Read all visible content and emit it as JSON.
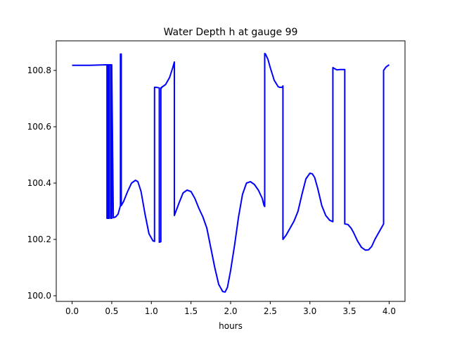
{
  "chart_data": {
    "type": "line",
    "title": "Water Depth h at gauge 99",
    "xlabel": "hours",
    "ylabel": "",
    "xlim": [
      -0.2,
      4.2
    ],
    "ylim": [
      99.98,
      100.905
    ],
    "xticks": [
      0.0,
      0.5,
      1.0,
      1.5,
      2.0,
      2.5,
      3.0,
      3.5,
      4.0
    ],
    "xtick_labels": [
      "0.0",
      "0.5",
      "1.0",
      "1.5",
      "2.0",
      "2.5",
      "3.0",
      "3.5",
      "4.0"
    ],
    "yticks": [
      100.0,
      100.2,
      100.4,
      100.6,
      100.8
    ],
    "ytick_labels": [
      "100.0",
      "100.2",
      "100.4",
      "100.6",
      "100.8"
    ],
    "grid": false,
    "legend": "none",
    "series": [
      {
        "color": "#0000ff",
        "x": [
          0.0,
          0.2,
          0.44,
          0.44,
          0.45,
          0.45,
          0.46,
          0.46,
          0.47,
          0.47,
          0.49,
          0.49,
          0.5,
          0.5,
          0.52,
          0.55,
          0.58,
          0.6,
          0.61,
          0.61,
          0.62,
          0.62,
          0.65,
          0.7,
          0.75,
          0.8,
          0.83,
          0.87,
          0.92,
          0.97,
          1.02,
          1.04,
          1.04,
          1.06,
          1.1,
          1.1,
          1.12,
          1.12,
          1.13,
          1.13,
          1.18,
          1.23,
          1.27,
          1.29,
          1.29,
          1.35,
          1.4,
          1.45,
          1.5,
          1.55,
          1.6,
          1.65,
          1.7,
          1.75,
          1.8,
          1.85,
          1.9,
          1.93,
          1.96,
          2.0,
          2.05,
          2.1,
          2.15,
          2.2,
          2.25,
          2.3,
          2.35,
          2.4,
          2.42,
          2.43,
          2.43,
          2.44,
          2.47,
          2.5,
          2.55,
          2.6,
          2.62,
          2.65,
          2.66,
          2.66,
          2.7,
          2.75,
          2.8,
          2.85,
          2.9,
          2.95,
          3.0,
          3.03,
          3.06,
          3.1,
          3.15,
          3.2,
          3.25,
          3.29,
          3.29,
          3.32,
          3.34,
          3.38,
          3.44,
          3.44,
          3.48,
          3.52,
          3.55,
          3.6,
          3.65,
          3.7,
          3.74,
          3.78,
          3.82,
          3.87,
          3.92,
          3.93,
          3.93,
          3.96,
          4.0
        ],
        "y": [
          100.818,
          100.818,
          100.82,
          100.275,
          100.275,
          100.82,
          100.82,
          100.275,
          100.275,
          100.82,
          100.82,
          100.275,
          100.275,
          100.82,
          100.277,
          100.28,
          100.29,
          100.31,
          100.32,
          100.858,
          100.858,
          100.32,
          100.335,
          100.37,
          100.4,
          100.41,
          100.405,
          100.37,
          100.29,
          100.22,
          100.195,
          100.193,
          100.74,
          100.74,
          100.738,
          100.19,
          100.192,
          100.738,
          100.738,
          100.74,
          100.75,
          100.775,
          100.81,
          100.83,
          100.285,
          100.33,
          100.365,
          100.375,
          100.37,
          100.345,
          100.31,
          100.28,
          100.24,
          100.17,
          100.1,
          100.04,
          100.015,
          100.013,
          100.03,
          100.09,
          100.18,
          100.28,
          100.36,
          100.4,
          100.405,
          100.395,
          100.375,
          100.345,
          100.322,
          100.317,
          100.86,
          100.858,
          100.84,
          100.81,
          100.765,
          100.742,
          100.74,
          100.74,
          100.745,
          100.2,
          100.215,
          100.24,
          100.265,
          100.3,
          100.36,
          100.415,
          100.435,
          100.433,
          100.42,
          100.38,
          100.32,
          100.285,
          100.268,
          100.263,
          100.81,
          100.805,
          100.802,
          100.803,
          100.803,
          100.255,
          100.253,
          100.24,
          100.225,
          100.195,
          100.172,
          100.162,
          100.163,
          100.175,
          100.2,
          100.225,
          100.25,
          100.255,
          100.8,
          100.812,
          100.82
        ]
      }
    ]
  }
}
